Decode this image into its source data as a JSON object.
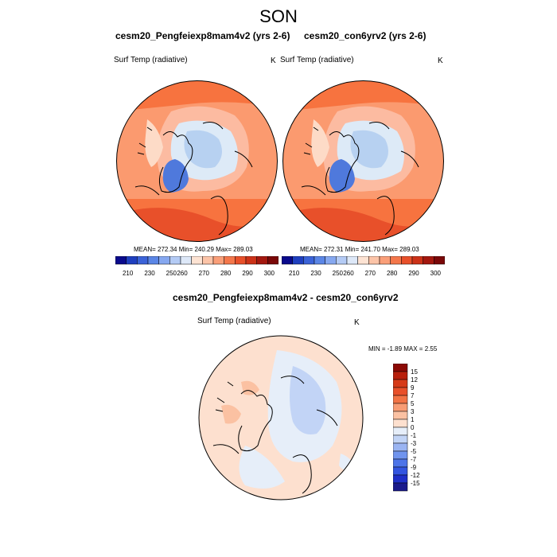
{
  "title": "SON",
  "colors": {
    "land_outline": "#000000",
    "warm_1": "#fddbc7",
    "warm_2": "#fcbba1",
    "warm_3": "#fb9a6f",
    "warm_4": "#f7733f",
    "warm_5": "#e8502a",
    "cool_1": "#ddeaf7",
    "cool_2": "#b7d1f1",
    "cool_3": "#8eb5ec",
    "cool_4": "#4f79dc"
  },
  "panels": [
    {
      "title": "cesm20_Pengfeiexp8mam4v2 (yrs 2-6)",
      "variable": "Surf Temp (radiative)",
      "unit": "K",
      "stats": "MEAN= 272.34  Min= 240.29  Max= 289.03"
    },
    {
      "title": "cesm20_con6yrv2 (yrs 2-6)",
      "variable": "Surf Temp (radiative)",
      "unit": "K",
      "stats": "MEAN= 272.31  Min= 241.70  Max= 289.03"
    },
    {
      "title": "cesm20_Pengfeiexp8mam4v2 - cesm20_con6yrv2",
      "variable": "Surf Temp (radiative)",
      "unit": "K",
      "stats": "MIN =  -1.89 MAX =   2.55"
    }
  ],
  "colorbar_top": {
    "colors": [
      "#0a0a8c",
      "#1f3fbf",
      "#3b63d8",
      "#5b86e6",
      "#86a8f0",
      "#b4cbf5",
      "#dde8f8",
      "#fde3d3",
      "#fcc4a8",
      "#fa9f79",
      "#f4774b",
      "#e8502a",
      "#cc3218",
      "#a4180f",
      "#7a0808"
    ],
    "labels": [
      "210",
      "230",
      "250",
      "260",
      "270",
      "280",
      "290",
      "300"
    ]
  },
  "colorbar_diff": {
    "colors": [
      "#1a1a8c",
      "#1f2fc8",
      "#3355e0",
      "#4d74e8",
      "#7094ee",
      "#9ab4f2",
      "#c2d4f6",
      "#e6eef9",
      "#fde0cf",
      "#fbc1a2",
      "#f89c74",
      "#f27345",
      "#e8502a",
      "#d63a18",
      "#b8200c",
      "#8c0a05"
    ],
    "labels": [
      "15",
      "12",
      "9",
      "7",
      "5",
      "3",
      "1",
      "0",
      "-1",
      "-3",
      "-5",
      "-7",
      "-9",
      "-12",
      "-15"
    ]
  }
}
